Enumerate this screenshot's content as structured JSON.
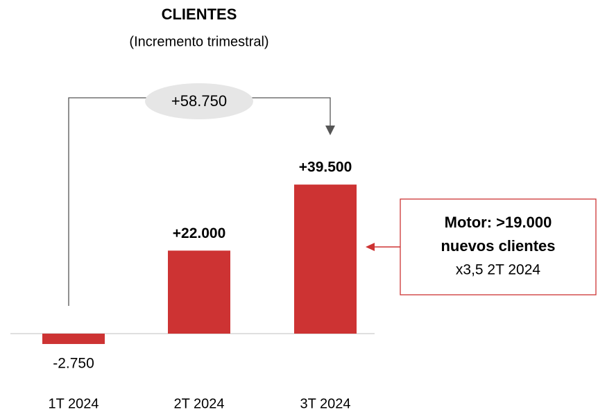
{
  "chart_data": {
    "type": "bar",
    "title": "CLIENTES",
    "subtitle": "(Incremento trimestral)",
    "categories": [
      "1T 2024",
      "2T 2024",
      "3T 2024"
    ],
    "values": [
      -2750,
      22000,
      39500
    ],
    "value_labels": [
      "-2.750",
      "+22.000",
      "+39.500"
    ],
    "color": "#cd3333",
    "ylim": [
      -5000,
      45000
    ],
    "annotations": {
      "total": "+58.750",
      "box": [
        "Motor: >19.000",
        "nuevos clientes",
        "x3,5 2T 2024"
      ]
    }
  }
}
